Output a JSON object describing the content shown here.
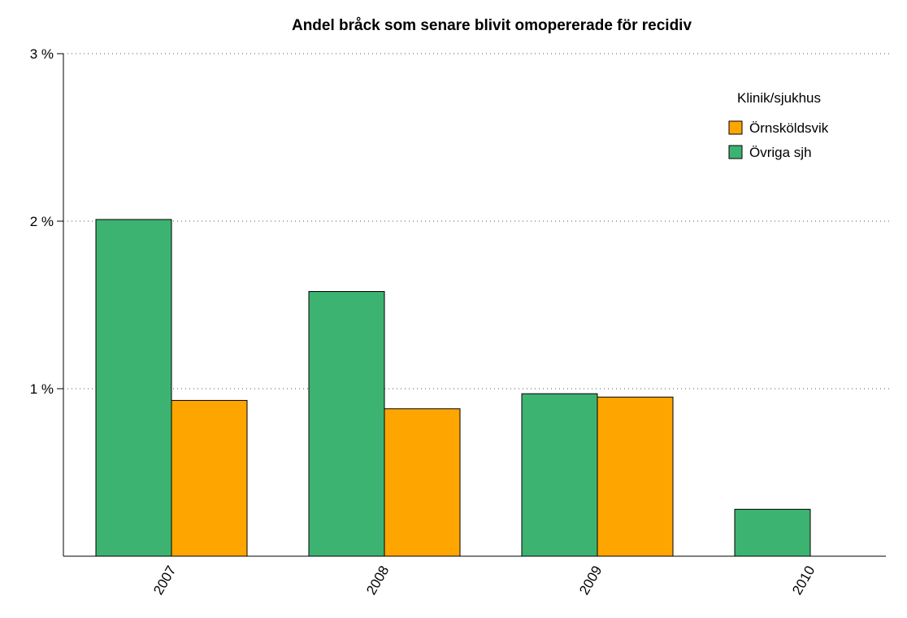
{
  "chart_data": {
    "type": "bar",
    "title": "Andel bråck som senare blivit omopererade för recidiv",
    "categories": [
      "2007",
      "2008",
      "2009",
      "2010"
    ],
    "series": [
      {
        "name": "Örnsköldsvik",
        "color": "#ffa500",
        "values": [
          0.93,
          0.88,
          0.95,
          0
        ]
      },
      {
        "name": "Övriga sjh",
        "color": "#3cb371",
        "values": [
          2.01,
          1.58,
          0.97,
          0.28
        ]
      }
    ],
    "legend_title": "Klinik/sjukhus",
    "legend_position": "top-right",
    "ylim": [
      0,
      3
    ],
    "yticks": [
      {
        "value": 1,
        "label": "1 %"
      },
      {
        "value": 2,
        "label": "2 %"
      },
      {
        "value": 3,
        "label": "3 %"
      }
    ],
    "grid": true
  }
}
